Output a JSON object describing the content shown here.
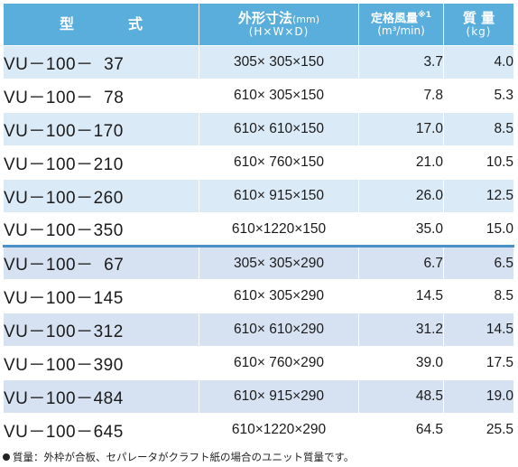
{
  "header": {
    "type_label": "型式",
    "dims_label": "外形寸法",
    "dims_unit": "(mm)",
    "dims_sub": "(H×W×D)",
    "flow_label": "定格風量",
    "flow_mark": "※1",
    "flow_unit": "(m³/min)",
    "mass_label": "質 量",
    "mass_unit": "(kg)"
  },
  "rows": [
    {
      "model": "VU－100－  37",
      "dims": "305× 305×150",
      "flow": "3.7",
      "mass": "4.0"
    },
    {
      "model": "VU－100－  78",
      "dims": "610× 305×150",
      "flow": "7.8",
      "mass": "5.3"
    },
    {
      "model": "VU－100－170",
      "dims": "610× 610×150",
      "flow": "17.0",
      "mass": "8.5"
    },
    {
      "model": "VU－100－210",
      "dims": "610× 760×150",
      "flow": "21.0",
      "mass": "10.5"
    },
    {
      "model": "VU－100－260",
      "dims": "610× 915×150",
      "flow": "26.0",
      "mass": "12.5"
    },
    {
      "model": "VU－100－350",
      "dims": "610×1220×150",
      "flow": "35.0",
      "mass": "15.0"
    },
    {
      "model": "VU－100－  67",
      "dims": "305× 305×290",
      "flow": "6.7",
      "mass": "6.5"
    },
    {
      "model": "VU－100－145",
      "dims": "610× 305×290",
      "flow": "14.5",
      "mass": "8.5"
    },
    {
      "model": "VU－100－312",
      "dims": "610× 610×290",
      "flow": "31.2",
      "mass": "14.5"
    },
    {
      "model": "VU－100－390",
      "dims": "610× 760×290",
      "flow": "39.0",
      "mass": "17.5"
    },
    {
      "model": "VU－100－484",
      "dims": "610× 915×290",
      "flow": "48.5",
      "mass": "19.0"
    },
    {
      "model": "VU－100－645",
      "dims": "610×1220×290",
      "flow": "64.5",
      "mass": "25.5"
    }
  ],
  "note": "質量：外枠が合板、セパレータがクラフト紙の場合のユニット質量です。",
  "colors": {
    "header_bg": "#5aaedc",
    "row_shaded": "#dbeaf7",
    "row_plain": "#ffffff"
  }
}
